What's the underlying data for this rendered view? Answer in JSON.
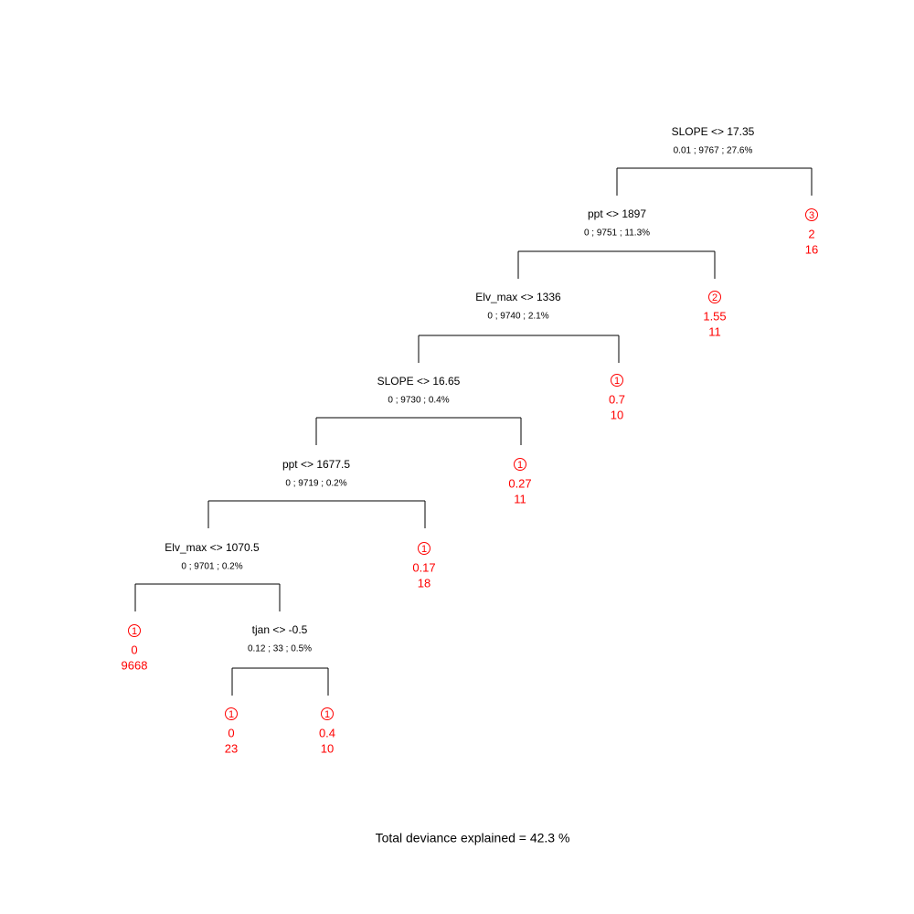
{
  "nodes": [
    {
      "split": "SLOPE <> 17.35",
      "stats": "0.01 ; 9767 ; 27.6%"
    },
    {
      "split": "ppt <> 1897",
      "stats": "0 ; 9751 ; 11.3%"
    },
    {
      "split": "Elv_max <> 1336",
      "stats": "0 ; 9740 ; 2.1%"
    },
    {
      "split": "SLOPE <> 16.65",
      "stats": "0 ; 9730 ; 0.4%"
    },
    {
      "split": "ppt <> 1677.5",
      "stats": "0 ; 9719 ; 0.2%"
    },
    {
      "split": "Elv_max <> 1070.5",
      "stats": "0 ; 9701 ; 0.2%"
    },
    {
      "split": "tjan <> -0.5",
      "stats": "0.12 ; 33 ; 0.5%"
    }
  ],
  "leaves": [
    {
      "class": 3,
      "value": 2,
      "n": 16
    },
    {
      "class": 2,
      "value": 1.55,
      "n": 11
    },
    {
      "class": 1,
      "value": 0.7,
      "n": 10
    },
    {
      "class": 1,
      "value": 0.27,
      "n": 11
    },
    {
      "class": 1,
      "value": 0.17,
      "n": 18
    },
    {
      "class": 1,
      "value": 0,
      "n": 9668
    },
    {
      "class": 1,
      "value": 0,
      "n": 23
    },
    {
      "class": 1,
      "value": 0.4,
      "n": 10
    }
  ],
  "footer": "Total deviance explained = 42.3 %"
}
